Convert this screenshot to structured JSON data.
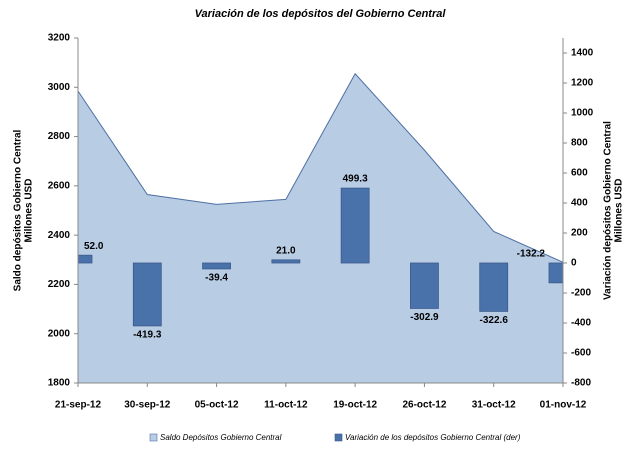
{
  "chart_data": {
    "type": "area-bar",
    "title": "Variación de los depósitos del Gobierno Central",
    "ylabel": [
      "Saldo depósitos Gobierno Central",
      "Millones USD"
    ],
    "y2label": [
      "Variación depósitos Gobierno Central",
      "Millones USD"
    ],
    "categories": [
      "21-sep-12",
      "30-sep-12",
      "05-oct-12",
      "11-oct-12",
      "19-oct-12",
      "26-oct-12",
      "31-oct-12",
      "01-nov-12"
    ],
    "series": [
      {
        "name": "Saldo Depósitos Gobierno Central",
        "kind": "area",
        "color": "#b8cce4",
        "values": [
          2985,
          2565,
          2525,
          2545,
          3055,
          2745,
          2415,
          2290
        ]
      },
      {
        "name": "Variación de los depósitos Gobierno Central (der)",
        "kind": "bar",
        "axis": "y2",
        "color": "#4a72aa",
        "values": [
          52.0,
          -419.3,
          -39.4,
          21.0,
          499.3,
          -302.9,
          -322.6,
          -132.2
        ],
        "value_labels": [
          "52.0",
          "-419.3",
          "-39.4",
          "21.0",
          "499.3",
          "-302.9",
          "-322.6",
          "-132.2"
        ]
      }
    ],
    "ylim": [
      1800,
      3200
    ],
    "yticks": [
      1800,
      2000,
      2200,
      2400,
      2600,
      2800,
      3000,
      3200
    ],
    "y2lim": [
      -800,
      1500
    ],
    "y2ticks": [
      -800,
      -600,
      -400,
      -200,
      0,
      200,
      400,
      600,
      800,
      1000,
      1200,
      1400
    ],
    "grid": false,
    "legend": "bottom"
  }
}
